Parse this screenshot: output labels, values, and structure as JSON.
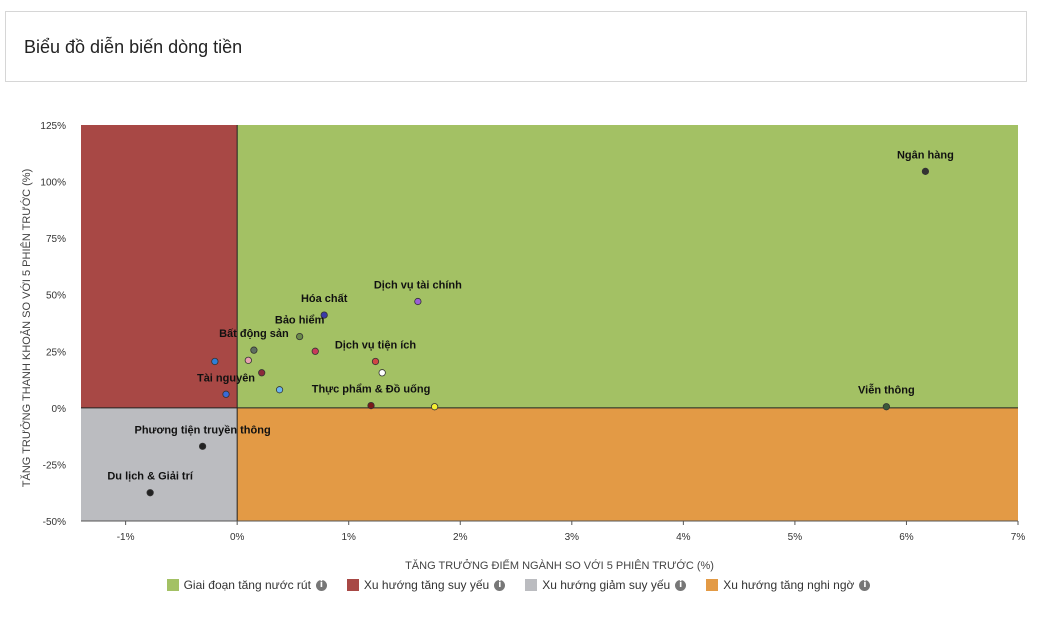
{
  "header": {
    "title": "Biểu đồ diễn biến dòng tiền"
  },
  "colors": {
    "inflow": "#a3c164",
    "weak_up": "#a84845",
    "weak_down": "#bbbcc0",
    "doubt": "#e39a45"
  },
  "legend": [
    {
      "label": "Giai đoạn tăng nước rút",
      "color": "#a3c164",
      "icon": "info-icon"
    },
    {
      "label": "Xu hướng tăng suy yếu",
      "color": "#a84845",
      "icon": "info-icon"
    },
    {
      "label": "Xu hướng giảm suy yếu",
      "color": "#bbbcc0",
      "icon": "info-icon"
    },
    {
      "label": "Xu hướng tăng nghi ngờ",
      "color": "#e39a45",
      "icon": "info-icon"
    }
  ],
  "chart_data": {
    "type": "scatter",
    "xlabel": "TĂNG TRƯỞNG ĐIỂM NGÀNH SO VỚI 5 PHIÊN TRƯỚC (%)",
    "ylabel": "TĂNG TRƯỞNG THANH KHOẢN SO VỚI 5 PHIÊN TRƯỚC (%)",
    "xlim": [
      -1.4,
      7
    ],
    "ylim": [
      -50,
      125
    ],
    "xticks": [
      -1,
      0,
      1,
      2,
      3,
      4,
      5,
      6,
      7
    ],
    "xtick_labels": [
      "-1%",
      "0%",
      "1%",
      "2%",
      "3%",
      "4%",
      "5%",
      "6%",
      "7%"
    ],
    "yticks": [
      -50,
      -25,
      0,
      25,
      50,
      75,
      100,
      125
    ],
    "ytick_labels": [
      "-50%",
      "-25%",
      "0%",
      "25%",
      "50%",
      "75%",
      "100%",
      "125%"
    ],
    "points": [
      {
        "label": "Ngân hàng",
        "x": 6.17,
        "y": 104.5,
        "color": "#333333"
      },
      {
        "label": "Dịch vụ tài chính",
        "x": 1.62,
        "y": 47,
        "color": "#9b5fd4"
      },
      {
        "label": "Hóa chất",
        "x": 0.78,
        "y": 41,
        "color": "#3a3aa8"
      },
      {
        "label": "Bảo hiểm",
        "x": 0.56,
        "y": 31.5,
        "color": "#6b8a4a"
      },
      {
        "label": "Bất động sản",
        "x": 0.15,
        "y": 25.5,
        "color": "#5e6e5e"
      },
      {
        "label": "Dịch vụ tiện ích",
        "x": 1.24,
        "y": 20.5,
        "color": "#d04545"
      },
      {
        "label": "",
        "x": 0.7,
        "y": 25,
        "color": "#c83a5a"
      },
      {
        "label": "",
        "x": 0.1,
        "y": 21,
        "color": "#e8a0b0"
      },
      {
        "label": "",
        "x": -0.2,
        "y": 20.5,
        "color": "#2d7fd8"
      },
      {
        "label": "",
        "x": 1.3,
        "y": 15.5,
        "color": "#ffffff"
      },
      {
        "label": "",
        "x": 0.22,
        "y": 15.5,
        "color": "#8b2a3a"
      },
      {
        "label": "",
        "x": 0.38,
        "y": 8,
        "color": "#6ab4f0"
      },
      {
        "label": "Tài nguyên",
        "x": -0.1,
        "y": 6,
        "color": "#3a6ad8"
      },
      {
        "label": "Thực phẩm & Đồ uống",
        "x": 1.2,
        "y": 1,
        "color": "#7a1a1a"
      },
      {
        "label": "",
        "x": 1.77,
        "y": 0.5,
        "color": "#f5f032"
      },
      {
        "label": "Viễn thông",
        "x": 5.82,
        "y": 0.5,
        "color": "#3a5a3a"
      },
      {
        "label": "Phương tiện truyền thông",
        "x": -0.31,
        "y": -17,
        "color": "#222222"
      },
      {
        "label": "Du lịch & Giải trí",
        "x": -0.78,
        "y": -37.5,
        "color": "#222222"
      }
    ]
  }
}
